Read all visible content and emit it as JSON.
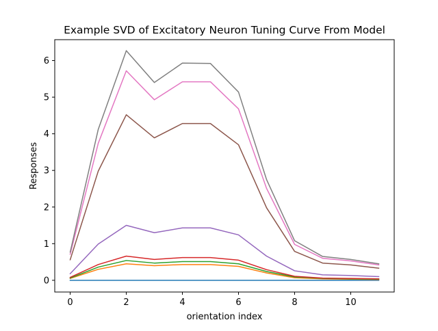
{
  "chart_data": {
    "type": "line",
    "title": "Example SVD of Excitatory Neuron Tuning Curve From Model",
    "xlabel": "orientation index",
    "ylabel": "Responses",
    "xlim": [
      -0.55,
      11.55
    ],
    "ylim": [
      -0.32,
      6.57
    ],
    "xticks": [
      0,
      2,
      4,
      6,
      8,
      10
    ],
    "yticks": [
      0,
      1,
      2,
      3,
      4,
      5,
      6
    ],
    "grid": false,
    "legend": "none",
    "x": [
      0,
      1,
      2,
      3,
      4,
      5,
      6,
      7,
      8,
      9,
      10,
      11
    ],
    "series": [
      {
        "color": "#1f77b4",
        "values": [
          0.0,
          0.0,
          0.0,
          0.0,
          0.0,
          0.0,
          0.0,
          0.0,
          0.0,
          0.0,
          0.0,
          0.0
        ]
      },
      {
        "color": "#ff7f0e",
        "values": [
          0.05,
          0.3,
          0.45,
          0.4,
          0.43,
          0.43,
          0.38,
          0.2,
          0.07,
          0.04,
          0.03,
          0.02
        ]
      },
      {
        "color": "#2ca02c",
        "values": [
          0.06,
          0.36,
          0.54,
          0.47,
          0.51,
          0.51,
          0.45,
          0.24,
          0.09,
          0.05,
          0.04,
          0.03
        ]
      },
      {
        "color": "#d62728",
        "values": [
          0.08,
          0.43,
          0.66,
          0.57,
          0.62,
          0.62,
          0.55,
          0.29,
          0.11,
          0.06,
          0.05,
          0.04
        ]
      },
      {
        "color": "#9467bd",
        "values": [
          0.18,
          0.99,
          1.5,
          1.3,
          1.43,
          1.43,
          1.24,
          0.66,
          0.26,
          0.15,
          0.13,
          0.1
        ]
      },
      {
        "color": "#8c564b",
        "values": [
          0.56,
          2.98,
          4.52,
          3.89,
          4.28,
          4.28,
          3.7,
          1.98,
          0.79,
          0.47,
          0.42,
          0.33
        ]
      },
      {
        "color": "#e377c2",
        "values": [
          0.71,
          3.74,
          5.72,
          4.93,
          5.42,
          5.42,
          4.68,
          2.51,
          0.98,
          0.6,
          0.53,
          0.42
        ]
      },
      {
        "color": "#7f7f7f",
        "values": [
          0.77,
          4.12,
          6.27,
          5.4,
          5.93,
          5.92,
          5.14,
          2.75,
          1.08,
          0.65,
          0.57,
          0.45
        ]
      }
    ]
  }
}
